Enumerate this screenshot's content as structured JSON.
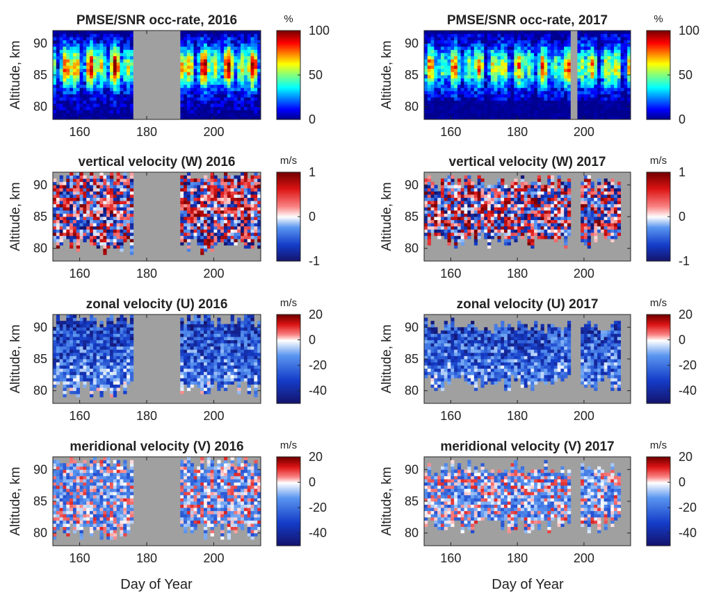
{
  "figure": {
    "xlabel_left": "Day of Year",
    "xlabel_right": "Day of Year"
  },
  "chart_data": [
    {
      "type": "heatmap",
      "title": "PMSE/SNR occ-rate, 2016",
      "ylabel": "Altitude, km",
      "unit": "%",
      "year": 2016,
      "variable": "occ",
      "xlim": [
        152,
        214
      ],
      "ylim": [
        78,
        92
      ],
      "xticks": [
        160,
        180,
        200
      ],
      "yticks": [
        80,
        85,
        90
      ],
      "clim": [
        0,
        100
      ],
      "cticks": [
        0,
        50,
        100
      ],
      "colormap": "jet",
      "no_data_days": [
        [
          176,
          190
        ]
      ],
      "active_altitude": [
        79,
        91
      ],
      "background": "#a0a0a0"
    },
    {
      "type": "heatmap",
      "title": "PMSE/SNR occ-rate, 2017",
      "ylabel": "Altitude, km",
      "unit": "%",
      "year": 2017,
      "variable": "occ",
      "xlim": [
        152,
        214
      ],
      "ylim": [
        78,
        92
      ],
      "xticks": [
        160,
        180,
        200
      ],
      "yticks": [
        80,
        85,
        90
      ],
      "clim": [
        0,
        100
      ],
      "cticks": [
        0,
        50,
        100
      ],
      "colormap": "jet",
      "no_data_days": [
        [
          196,
          198
        ]
      ],
      "active_altitude": [
        81,
        91
      ],
      "background": "#a0a0a0"
    },
    {
      "type": "heatmap",
      "title": "vertical velocity (W) 2016",
      "ylabel": "Altitude, km",
      "unit": "m/s",
      "year": 2016,
      "variable": "W",
      "xlim": [
        152,
        214
      ],
      "ylim": [
        78,
        92
      ],
      "xticks": [
        160,
        180,
        200
      ],
      "yticks": [
        80,
        85,
        90
      ],
      "clim": [
        -1,
        1
      ],
      "cticks": [
        -1,
        0,
        1
      ],
      "colormap": "blue-white-red",
      "data_days": [
        [
          152,
          176
        ],
        [
          190,
          214
        ]
      ],
      "active_altitude": [
        80,
        91
      ],
      "background": "#a0a0a0"
    },
    {
      "type": "heatmap",
      "title": "vertical velocity (W) 2017",
      "ylabel": "Altitude, km",
      "unit": "m/s",
      "year": 2017,
      "variable": "W",
      "xlim": [
        152,
        214
      ],
      "ylim": [
        78,
        92
      ],
      "xticks": [
        160,
        180,
        200
      ],
      "yticks": [
        80,
        85,
        90
      ],
      "clim": [
        -1,
        1
      ],
      "cticks": [
        -1,
        0,
        1
      ],
      "colormap": "blue-white-red",
      "data_days": [
        [
          152,
          196
        ],
        [
          199,
          211
        ]
      ],
      "active_altitude": [
        81,
        90
      ],
      "background": "#a0a0a0"
    },
    {
      "type": "heatmap",
      "title": "zonal velocity (U) 2016",
      "ylabel": "Altitude, km",
      "unit": "m/s",
      "year": 2016,
      "variable": "U",
      "xlim": [
        152,
        214
      ],
      "ylim": [
        78,
        92
      ],
      "xticks": [
        160,
        180,
        200
      ],
      "yticks": [
        80,
        85,
        90
      ],
      "clim": [
        -50,
        20
      ],
      "cticks": [
        -40,
        -20,
        0,
        20
      ],
      "colormap": "blue-white-red",
      "data_days": [
        [
          152,
          176
        ],
        [
          190,
          214
        ]
      ],
      "active_altitude": [
        80,
        91
      ],
      "background": "#a0a0a0"
    },
    {
      "type": "heatmap",
      "title": "zonal velocity (U) 2017",
      "ylabel": "Altitude, km",
      "unit": "m/s",
      "year": 2017,
      "variable": "U",
      "xlim": [
        152,
        214
      ],
      "ylim": [
        78,
        92
      ],
      "xticks": [
        160,
        180,
        200
      ],
      "yticks": [
        80,
        85,
        90
      ],
      "clim": [
        -50,
        20
      ],
      "cticks": [
        -40,
        -20,
        0,
        20
      ],
      "colormap": "blue-white-red",
      "data_days": [
        [
          152,
          196
        ],
        [
          199,
          211
        ]
      ],
      "active_altitude": [
        81,
        90
      ],
      "background": "#a0a0a0"
    },
    {
      "type": "heatmap",
      "title": "meridional velocity (V) 2016",
      "ylabel": "Altitude, km",
      "unit": "m/s",
      "year": 2016,
      "variable": "V",
      "xlim": [
        152,
        214
      ],
      "ylim": [
        78,
        92
      ],
      "xticks": [
        160,
        180,
        200
      ],
      "yticks": [
        80,
        85,
        90
      ],
      "clim": [
        -50,
        20
      ],
      "cticks": [
        -40,
        -20,
        0,
        20
      ],
      "colormap": "blue-white-red",
      "data_days": [
        [
          152,
          176
        ],
        [
          190,
          214
        ]
      ],
      "active_altitude": [
        80,
        91
      ],
      "background": "#a0a0a0"
    },
    {
      "type": "heatmap",
      "title": "meridional velocity (V) 2017",
      "ylabel": "Altitude, km",
      "unit": "m/s",
      "year": 2017,
      "variable": "V",
      "xlim": [
        152,
        214
      ],
      "ylim": [
        78,
        92
      ],
      "xticks": [
        160,
        180,
        200
      ],
      "yticks": [
        80,
        85,
        90
      ],
      "clim": [
        -50,
        20
      ],
      "cticks": [
        -40,
        -20,
        0,
        20
      ],
      "colormap": "blue-white-red",
      "data_days": [
        [
          152,
          196
        ],
        [
          199,
          211
        ]
      ],
      "active_altitude": [
        81,
        90
      ],
      "background": "#a0a0a0"
    }
  ]
}
